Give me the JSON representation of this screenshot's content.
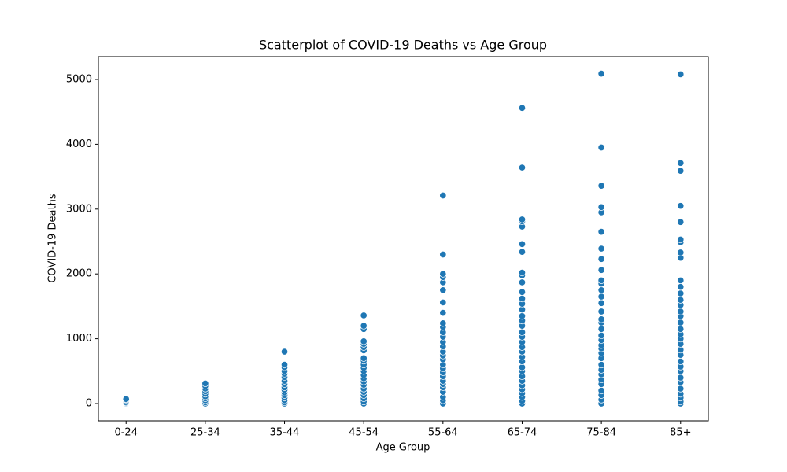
{
  "chart_data": {
    "type": "scatter",
    "title": "Scatterplot of COVID-19 Deaths vs Age Group",
    "x_label": "Age Group",
    "y_label": "COVID-19 Deaths",
    "color": "#1f77b4",
    "grid": false,
    "categories": [
      "0-24",
      "25-34",
      "35-44",
      "45-54",
      "55-64",
      "65-74",
      "75-84",
      "85+"
    ],
    "values": [
      [
        0,
        10,
        20,
        40,
        60,
        70
      ],
      [
        0,
        20,
        50,
        80,
        110,
        150,
        190,
        230,
        270,
        310
      ],
      [
        0,
        20,
        50,
        90,
        130,
        170,
        210,
        250,
        300,
        350,
        410,
        460,
        500,
        560,
        600,
        800
      ],
      [
        0,
        30,
        80,
        130,
        180,
        230,
        290,
        340,
        390,
        440,
        500,
        550,
        600,
        660,
        700,
        820,
        870,
        920,
        960,
        1150,
        1200,
        1360
      ],
      [
        0,
        50,
        100,
        180,
        250,
        300,
        350,
        420,
        480,
        540,
        600,
        680,
        740,
        800,
        880,
        950,
        1030,
        1100,
        1180,
        1240,
        1400,
        1560,
        1750,
        1870,
        1950,
        2000,
        2300,
        3210
      ],
      [
        0,
        40,
        100,
        160,
        220,
        280,
        350,
        420,
        500,
        560,
        650,
        720,
        800,
        870,
        950,
        1030,
        1100,
        1200,
        1280,
        1350,
        1450,
        1540,
        1620,
        1720,
        1870,
        1980,
        2020,
        2340,
        2460,
        2730,
        2810,
        2840,
        3640,
        4560
      ],
      [
        0,
        60,
        130,
        200,
        300,
        370,
        450,
        520,
        600,
        700,
        780,
        850,
        900,
        980,
        1050,
        1150,
        1250,
        1300,
        1420,
        1550,
        1650,
        1750,
        1850,
        1900,
        2060,
        2230,
        2390,
        2650,
        2950,
        3030,
        3360,
        3950,
        5090
      ],
      [
        0,
        30,
        90,
        150,
        230,
        330,
        400,
        500,
        570,
        650,
        750,
        830,
        920,
        1000,
        1070,
        1150,
        1250,
        1350,
        1420,
        1520,
        1600,
        1700,
        1800,
        1900,
        2250,
        2330,
        2490,
        2530,
        2800,
        3050,
        3590,
        3710,
        5080
      ]
    ],
    "ylim": [
      -267,
      5352
    ],
    "yticks": [
      0,
      1000,
      2000,
      3000,
      4000,
      5000
    ]
  }
}
